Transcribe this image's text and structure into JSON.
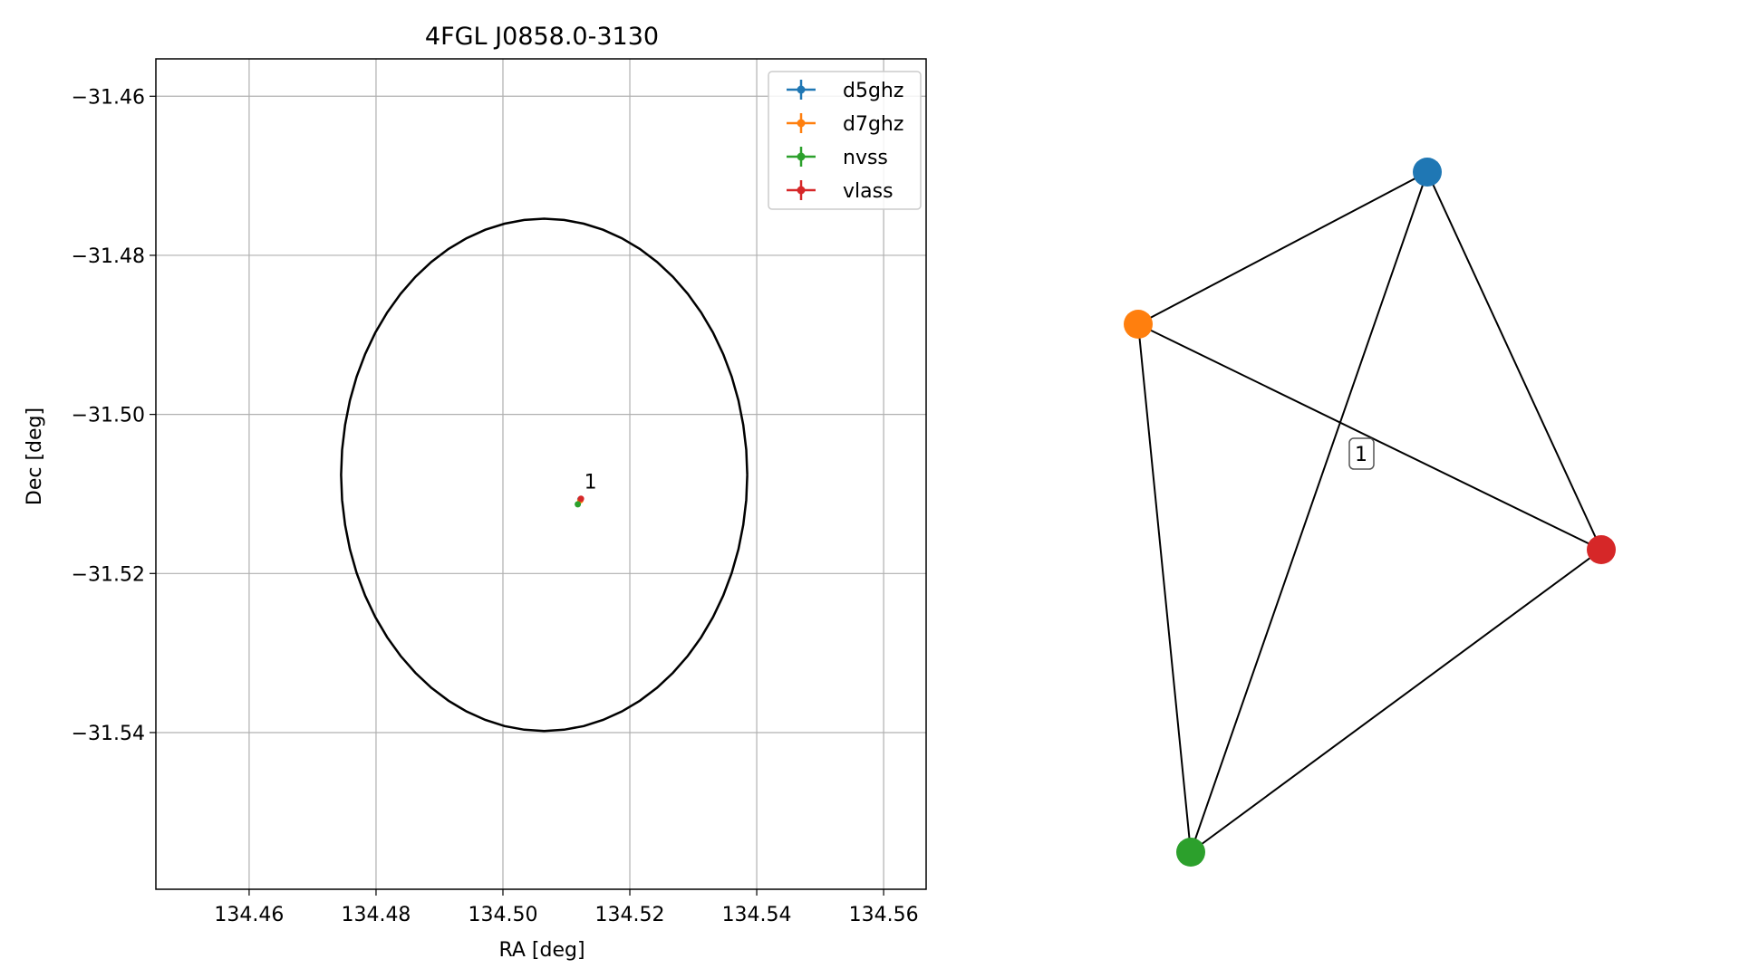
{
  "chart_data": [
    {
      "type": "scatter",
      "title": "4FGL J0858.0-3130",
      "xlabel": "RA [deg]",
      "ylabel": "Dec [deg]",
      "xlim": [
        134.4453,
        134.5667
      ],
      "ylim": [
        -31.5597,
        -31.4553
      ],
      "xticks": [
        134.46,
        134.48,
        134.5,
        134.52,
        134.54,
        134.56
      ],
      "xtick_labels": [
        "134.46",
        "134.48",
        "134.50",
        "134.52",
        "134.54",
        "134.56"
      ],
      "yticks": [
        -31.46,
        -31.48,
        -31.5,
        -31.52,
        -31.54
      ],
      "ytick_labels": [
        "−31.46",
        "−31.48",
        "−31.50",
        "−31.52",
        "−31.54"
      ],
      "grid": true,
      "legend_position": "top-right",
      "series": [
        {
          "name": "d5ghz",
          "color": "#1f77b4",
          "x": [
            134.5122
          ],
          "y": [
            -31.5107
          ]
        },
        {
          "name": "d7ghz",
          "color": "#ff7f0e",
          "x": [
            134.5122
          ],
          "y": [
            -31.5108
          ]
        },
        {
          "name": "nvss",
          "color": "#2ca02c",
          "x": [
            134.5118
          ],
          "y": [
            -31.5113
          ]
        },
        {
          "name": "vlass",
          "color": "#d62728",
          "x": [
            134.5123
          ],
          "y": [
            -31.5106
          ]
        }
      ],
      "ellipse": {
        "center": [
          134.5065,
          -31.5076
        ],
        "semi_major": 0.032,
        "semi_minor": 0.0322,
        "color": "#000000"
      },
      "annotations": [
        {
          "text": "1",
          "x": 134.5128,
          "y": -31.5093
        }
      ]
    },
    {
      "type": "network",
      "nodes": [
        {
          "name": "d5ghz",
          "color": "#1f77b4"
        },
        {
          "name": "d7ghz",
          "color": "#ff7f0e"
        },
        {
          "name": "nvss",
          "color": "#2ca02c"
        },
        {
          "name": "vlass",
          "color": "#d62728"
        }
      ],
      "edges": [
        [
          "d5ghz",
          "d7ghz"
        ],
        [
          "d5ghz",
          "nvss"
        ],
        [
          "d5ghz",
          "vlass"
        ],
        [
          "d7ghz",
          "nvss"
        ],
        [
          "d7ghz",
          "vlass"
        ],
        [
          "nvss",
          "vlass"
        ]
      ],
      "cluster_label": "1"
    }
  ]
}
